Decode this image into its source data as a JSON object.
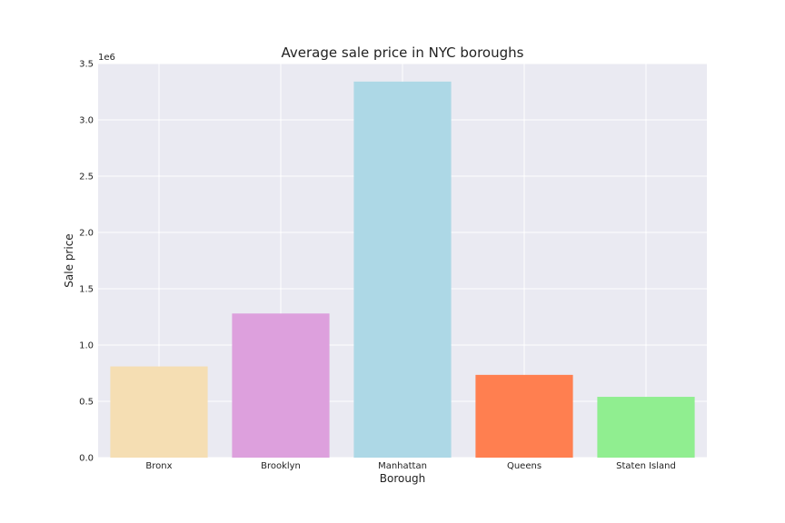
{
  "chart_data": {
    "type": "bar",
    "title": "Average sale price in NYC boroughs",
    "xlabel": "Borough",
    "ylabel": "Sale price",
    "y_scale_label": "1e6",
    "categories": [
      "Bronx",
      "Brooklyn",
      "Manhattan",
      "Queens",
      "Staten Island"
    ],
    "values": [
      810000,
      1280000,
      3340000,
      735000,
      540000
    ],
    "colors": [
      "#f5deb3",
      "#dda0dd",
      "#add8e6",
      "#ff7f50",
      "#90ee90"
    ],
    "ylim": [
      0,
      3500000
    ],
    "yticks": [
      0,
      500000,
      1000000,
      1500000,
      2000000,
      2500000,
      3000000,
      3500000
    ],
    "ytick_labels": [
      "0.0",
      "0.5",
      "1.0",
      "1.5",
      "2.0",
      "2.5",
      "3.0",
      "3.5"
    ],
    "grid": true,
    "background": "#eaeaf2"
  }
}
